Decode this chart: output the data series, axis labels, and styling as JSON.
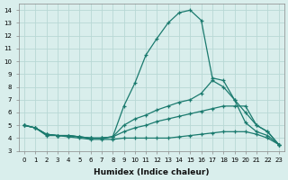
{
  "xlabel": "Humidex (Indice chaleur)",
  "xlim": [
    -0.5,
    23.5
  ],
  "ylim": [
    3,
    14.5
  ],
  "yticks": [
    3,
    4,
    5,
    6,
    7,
    8,
    9,
    10,
    11,
    12,
    13,
    14
  ],
  "xticks": [
    0,
    1,
    2,
    3,
    4,
    5,
    6,
    7,
    8,
    9,
    10,
    11,
    12,
    13,
    14,
    15,
    16,
    17,
    18,
    19,
    20,
    21,
    22,
    23
  ],
  "color": "#1a7a6e",
  "bg_color": "#d9eeec",
  "grid_color": "#b8d8d5",
  "line_peak_x": [
    0,
    1,
    2,
    3,
    4,
    5,
    6,
    7,
    8,
    9,
    10,
    11,
    12,
    13,
    14,
    15,
    16,
    17,
    18,
    19,
    20,
    21,
    22,
    23
  ],
  "line_peak_y": [
    5.0,
    4.8,
    4.3,
    4.2,
    4.2,
    4.1,
    4.0,
    4.0,
    4.1,
    6.5,
    8.3,
    10.5,
    11.8,
    13.0,
    13.8,
    14.0,
    13.2,
    8.7,
    8.5,
    7.0,
    5.2,
    4.5,
    4.2,
    3.5
  ],
  "line_mid1_x": [
    0,
    1,
    2,
    3,
    4,
    5,
    6,
    7,
    8,
    9,
    10,
    11,
    12,
    13,
    14,
    15,
    16,
    17,
    18,
    19,
    20,
    21,
    22,
    23
  ],
  "line_mid1_y": [
    5.0,
    4.8,
    4.3,
    4.2,
    4.2,
    4.1,
    4.0,
    4.0,
    4.1,
    5.0,
    5.5,
    5.8,
    6.2,
    6.5,
    6.8,
    7.0,
    7.5,
    8.5,
    8.0,
    7.0,
    6.0,
    5.0,
    4.5,
    3.5
  ],
  "line_mid2_x": [
    0,
    1,
    2,
    3,
    4,
    5,
    6,
    7,
    8,
    9,
    10,
    11,
    12,
    13,
    14,
    15,
    16,
    17,
    18,
    19,
    20,
    21,
    22,
    23
  ],
  "line_mid2_y": [
    5.0,
    4.8,
    4.3,
    4.2,
    4.2,
    4.1,
    4.0,
    4.0,
    4.1,
    4.5,
    4.8,
    5.0,
    5.3,
    5.5,
    5.7,
    5.9,
    6.1,
    6.3,
    6.5,
    6.5,
    6.5,
    5.0,
    4.5,
    3.5
  ],
  "line_bot_x": [
    0,
    1,
    2,
    3,
    4,
    5,
    6,
    7,
    8,
    9,
    10,
    11,
    12,
    13,
    14,
    15,
    16,
    17,
    18,
    19,
    20,
    21,
    22,
    23
  ],
  "line_bot_y": [
    5.0,
    4.8,
    4.2,
    4.2,
    4.1,
    4.0,
    3.9,
    3.9,
    3.9,
    4.0,
    4.0,
    4.0,
    4.0,
    4.0,
    4.1,
    4.2,
    4.3,
    4.4,
    4.5,
    4.5,
    4.5,
    4.3,
    4.0,
    3.5
  ]
}
